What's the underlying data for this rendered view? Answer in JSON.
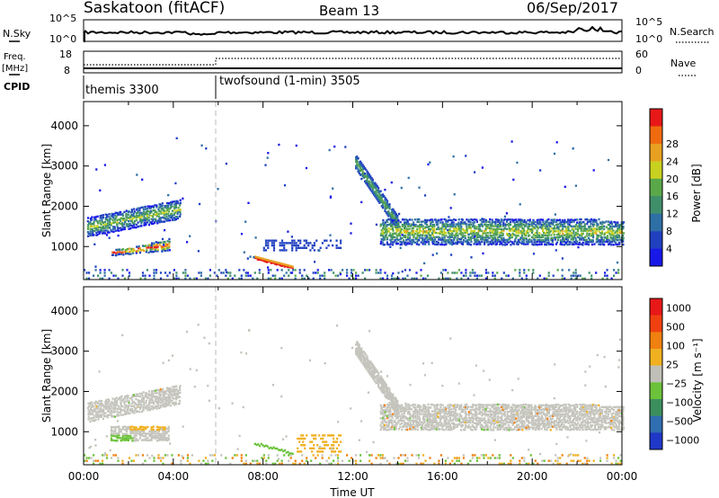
{
  "header": {
    "site": "Saskatoon (fitACF)",
    "beam": "Beam 13",
    "date": "06/Sep/2017"
  },
  "top_panels": {
    "nsky_label": "N.Sky",
    "nsearch_label": "N.Search",
    "nsky_ticks": [
      "10^5",
      "10^0"
    ],
    "nsky_right_ticks": [
      "10^5",
      "10^0"
    ],
    "freq_label_1": "Freq.",
    "freq_label_2": "[MHz]",
    "freq_ticks": [
      "18",
      "8"
    ],
    "nave_label": "Nave",
    "nave_ticks": [
      "60",
      "0"
    ],
    "cpid_label": "CPID",
    "cpid_segments": [
      {
        "label": "themis 3300",
        "start_hour": 0
      },
      {
        "label": "twofsound (1-min) 3505",
        "start_hour": 6
      }
    ]
  },
  "chart_data": [
    {
      "type": "heatmap",
      "name": "power",
      "ylabel": "Slant Range [km]",
      "xlabel": "",
      "x_range_hours": [
        0,
        24
      ],
      "ylim": [
        180,
        4600
      ],
      "y_ticks": [
        "1000",
        "2000",
        "3000",
        "4000"
      ],
      "y_tick_values": [
        1000,
        2000,
        3000,
        4000
      ],
      "colorbar": {
        "label": "Power [dB]",
        "ticks": [
          "4",
          "8",
          "12",
          "16",
          "20",
          "24",
          "28"
        ],
        "colors": [
          "#1818e8",
          "#2040c0",
          "#2e6fa6",
          "#3f8f6b",
          "#5aa84a",
          "#c8d020",
          "#e8a020",
          "#f06a10",
          "#e81818"
        ]
      },
      "features": [
        {
          "name": "upper band",
          "t0": 0.2,
          "t1": 4.2,
          "r0": 1300,
          "r1": 2050,
          "power": "low"
        },
        {
          "name": "lower band",
          "t0": 1.2,
          "t1": 3.8,
          "r0": 800,
          "r1": 1150,
          "power": "high"
        },
        {
          "name": "evening trace",
          "t0": 7.6,
          "t1": 9.3,
          "r0": 450,
          "r1": 700,
          "power": "high"
        },
        {
          "name": "descending trace",
          "t0": 12.1,
          "t1": 14.0,
          "r0": 1500,
          "r1": 3100,
          "power": "medium"
        },
        {
          "name": "long band",
          "t0": 13.0,
          "t1": 24.0,
          "r0": 1100,
          "r1": 1600,
          "power": "medium"
        }
      ]
    },
    {
      "type": "heatmap",
      "name": "velocity",
      "ylabel": "Slant Range [km]",
      "xlabel": "Time UT",
      "x_range_hours": [
        0,
        24
      ],
      "x_ticks": [
        "00:00",
        "04:00",
        "08:00",
        "12:00",
        "16:00",
        "20:00",
        "00:00"
      ],
      "ylim": [
        180,
        4600
      ],
      "y_ticks": [
        "1000",
        "2000",
        "3000",
        "4000"
      ],
      "y_tick_values": [
        1000,
        2000,
        3000,
        4000
      ],
      "colorbar": {
        "label": "Velocity [m s⁻¹]",
        "ticks": [
          "1000",
          "500",
          "100",
          "25",
          "−25",
          "−100",
          "−500",
          "−1000"
        ],
        "colors": [
          "#2038c8",
          "#2f6eb0",
          "#3c8f5c",
          "#6cc23a",
          "#c0c0b8",
          "#f0b020",
          "#f08010",
          "#f04010",
          "#e81818"
        ]
      }
    }
  ]
}
